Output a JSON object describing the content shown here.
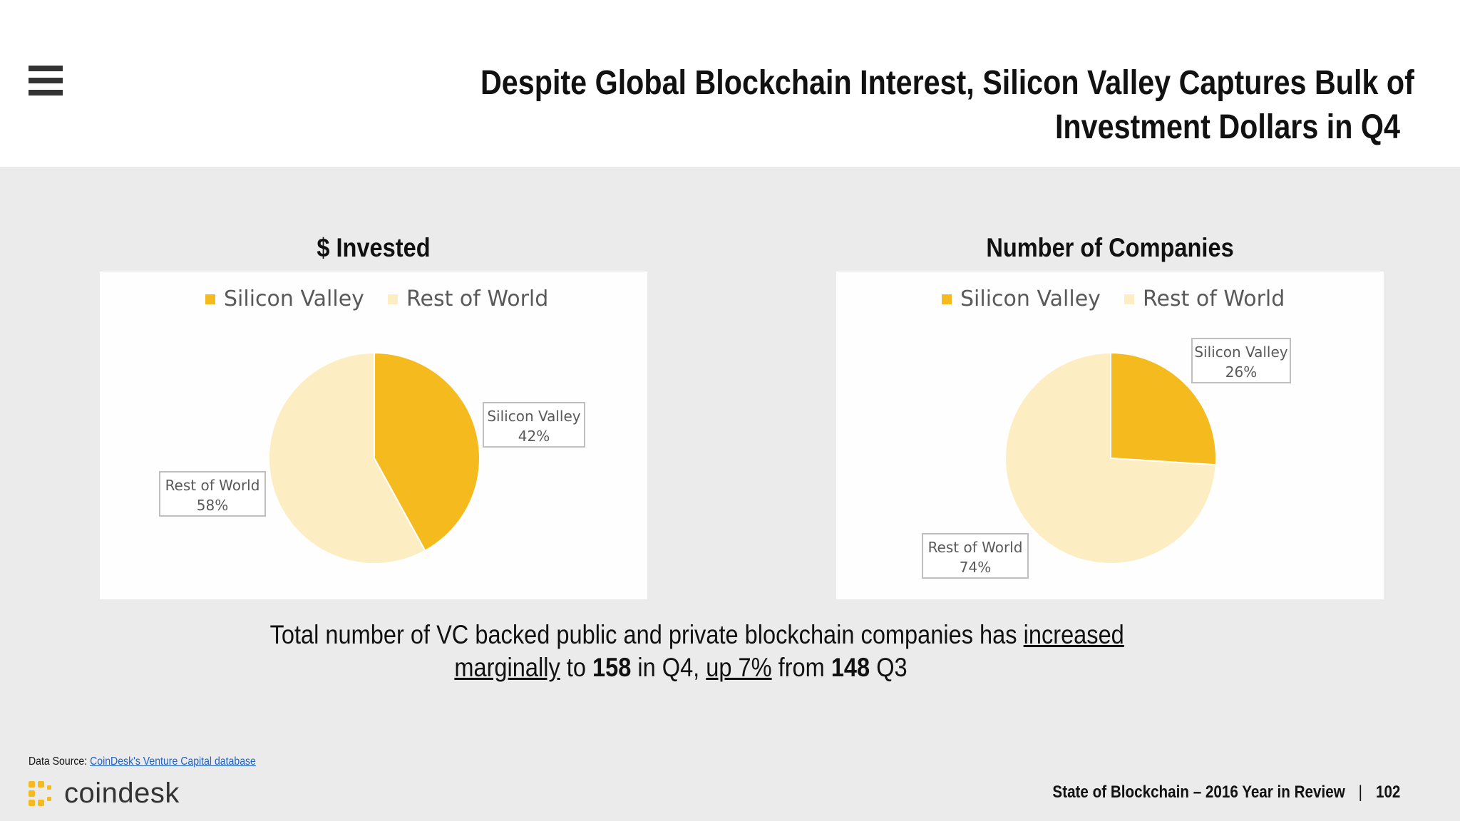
{
  "slide": {
    "title_line1": "Despite Global Blockchain Interest, Silicon Valley Captures Bulk of",
    "title_line2": "Investment Dollars in Q4",
    "menu_icon": "hamburger-menu-icon"
  },
  "charts": {
    "left_title": "$ Invested",
    "right_title": "Number of Companies"
  },
  "chart_data": [
    {
      "type": "pie",
      "title": "$ Invested",
      "legend": [
        "Silicon Valley",
        "Rest of World"
      ],
      "legend_position": "top",
      "slices": [
        {
          "label": "Silicon Valley",
          "value": 42,
          "display": "42%",
          "color": "#f5bb1e"
        },
        {
          "label": "Rest of World",
          "value": 58,
          "display": "58%",
          "color": "#fdedc3"
        }
      ]
    },
    {
      "type": "pie",
      "title": "Number of Companies",
      "legend": [
        "Silicon Valley",
        "Rest of World"
      ],
      "legend_position": "top",
      "slices": [
        {
          "label": "Silicon Valley",
          "value": 26,
          "display": "26%",
          "color": "#f5bb1e"
        },
        {
          "label": "Rest of World",
          "value": 74,
          "display": "74%",
          "color": "#fdedc3"
        }
      ]
    }
  ],
  "summary": {
    "part1": "Total number of VC backed public and private blockchain companies has ",
    "part2_underlined": "increased",
    "part3_underlined": "marginally",
    "part4": " to ",
    "part5_bold": "158",
    "part6": " in Q4, ",
    "part7_underlined": "up 7%",
    "part8": " from ",
    "part9_bold": "148",
    "part10": " Q3"
  },
  "footer": {
    "source_label": "Data Source: ",
    "source_link": "CoinDesk's Venture Capital database",
    "logo_text": "coindesk",
    "report_title": "State of Blockchain – 2016 Year in Review",
    "separator": "|",
    "page_number": "102"
  }
}
